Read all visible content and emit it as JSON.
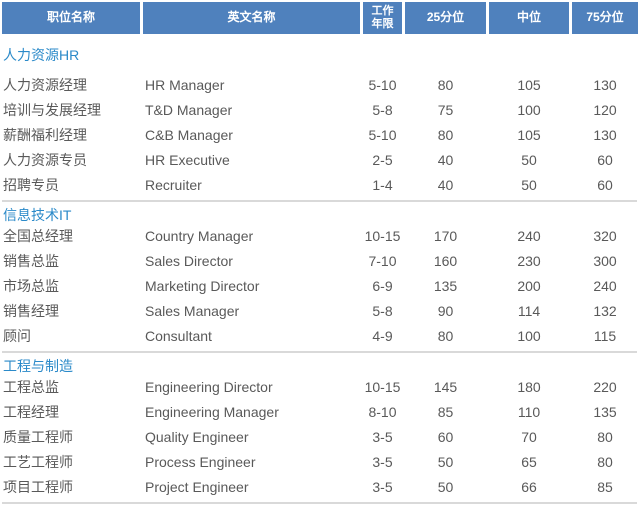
{
  "colors": {
    "header_bg": "#4f81bd",
    "header_text": "#ffffff",
    "section_title_text": "#2b8ac9",
    "body_text": "#595959",
    "divider": "#d9d9d9"
  },
  "table": {
    "columns": [
      {
        "label": "职位名称"
      },
      {
        "label": "英文名称"
      },
      {
        "label": "工作年限"
      },
      {
        "label": "25分位"
      },
      {
        "label": "中位"
      },
      {
        "label": "75分位"
      }
    ],
    "sections": [
      {
        "title": "人力资源HR",
        "rows": [
          {
            "cn": "人力资源经理",
            "en": "HR Manager",
            "years": "5-10",
            "p25": "80",
            "median": "105",
            "p75": "130"
          },
          {
            "cn": "培训与发展经理",
            "en": "T&D Manager",
            "years": "5-8",
            "p25": "75",
            "median": "100",
            "p75": "120"
          },
          {
            "cn": "薪酬福利经理",
            "en": "C&B Manager",
            "years": "5-10",
            "p25": "80",
            "median": "105",
            "p75": "130"
          },
          {
            "cn": "人力资源专员",
            "en": "HR Executive",
            "years": "2-5",
            "p25": "40",
            "median": "50",
            "p75": "60"
          },
          {
            "cn": "招聘专员",
            "en": "Recruiter",
            "years": "1-4",
            "p25": "40",
            "median": "50",
            "p75": "60"
          }
        ]
      },
      {
        "title": "信息技术IT",
        "rows": [
          {
            "cn": "全国总经理",
            "en": "Country Manager",
            "years": "10-15",
            "p25": "170",
            "median": "240",
            "p75": "320"
          },
          {
            "cn": "销售总监",
            "en": "Sales Director",
            "years": "7-10",
            "p25": "160",
            "median": "230",
            "p75": "300"
          },
          {
            "cn": "市场总监",
            "en": "Marketing Director",
            "years": "6-9",
            "p25": "135",
            "median": "200",
            "p75": "240"
          },
          {
            "cn": "销售经理",
            "en": "Sales Manager",
            "years": "5-8",
            "p25": "90",
            "median": "114",
            "p75": "132"
          },
          {
            "cn": "顾问",
            "en": "Consultant",
            "years": "4-9",
            "p25": "80",
            "median": "100",
            "p75": "115"
          }
        ]
      },
      {
        "title": "工程与制造",
        "rows": [
          {
            "cn": "工程总监",
            "en": "Engineering Director",
            "years": "10-15",
            "p25": "145",
            "median": "180",
            "p75": "220"
          },
          {
            "cn": "工程经理",
            "en": "Engineering Manager",
            "years": "8-10",
            "p25": "85",
            "median": "110",
            "p75": "135"
          },
          {
            "cn": "质量工程师",
            "en": "Quality Engineer",
            "years": "3-5",
            "p25": "60",
            "median": "70",
            "p75": "80"
          },
          {
            "cn": "工艺工程师",
            "en": "Process Engineer",
            "years": "3-5",
            "p25": "50",
            "median": "65",
            "p75": "80"
          },
          {
            "cn": "项目工程师",
            "en": "Project Engineer",
            "years": "3-5",
            "p25": "50",
            "median": "66",
            "p75": "85"
          }
        ]
      }
    ]
  }
}
